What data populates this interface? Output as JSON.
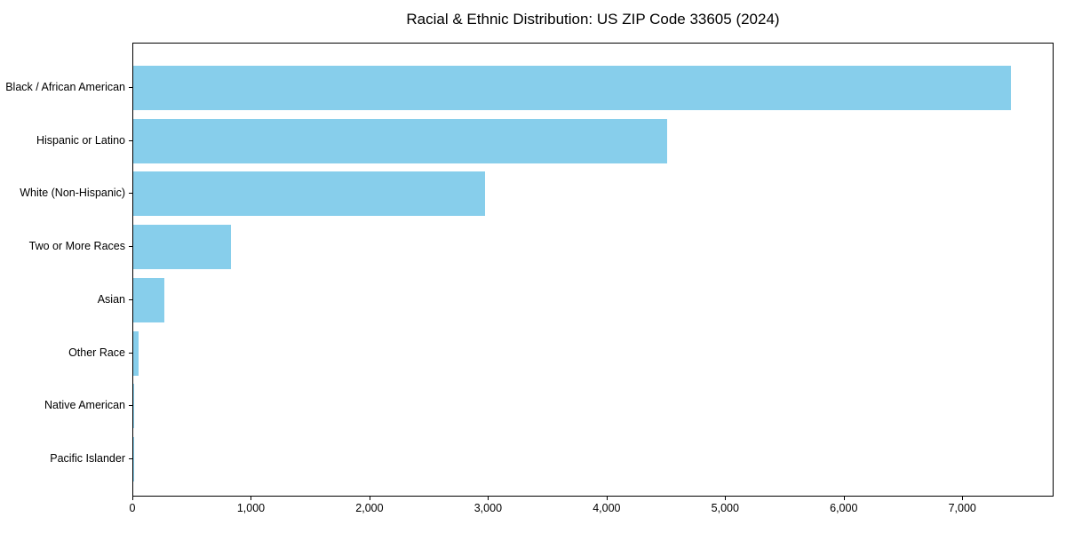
{
  "chart_data": {
    "type": "bar",
    "orientation": "horizontal",
    "title": "Racial & Ethnic Distribution: US ZIP Code 33605 (2024)",
    "categories": [
      "Black / African American",
      "Hispanic or Latino",
      "White (Non-Hispanic)",
      "Two or More Races",
      "Asian",
      "Other Race",
      "Native American",
      "Pacific Islander"
    ],
    "values": [
      7400,
      4505,
      2965,
      825,
      260,
      45,
      8,
      2
    ],
    "xlabel": "",
    "ylabel": "",
    "xlim": [
      0,
      7770
    ],
    "x_ticks": [
      0,
      1000,
      2000,
      3000,
      4000,
      5000,
      6000,
      7000
    ],
    "x_tick_labels": [
      "0",
      "1,000",
      "2,000",
      "3,000",
      "4,000",
      "5,000",
      "6,000",
      "7,000"
    ],
    "bar_color": "#87CEEB",
    "axis_color": "#000000",
    "grid": false,
    "legend": "none"
  }
}
